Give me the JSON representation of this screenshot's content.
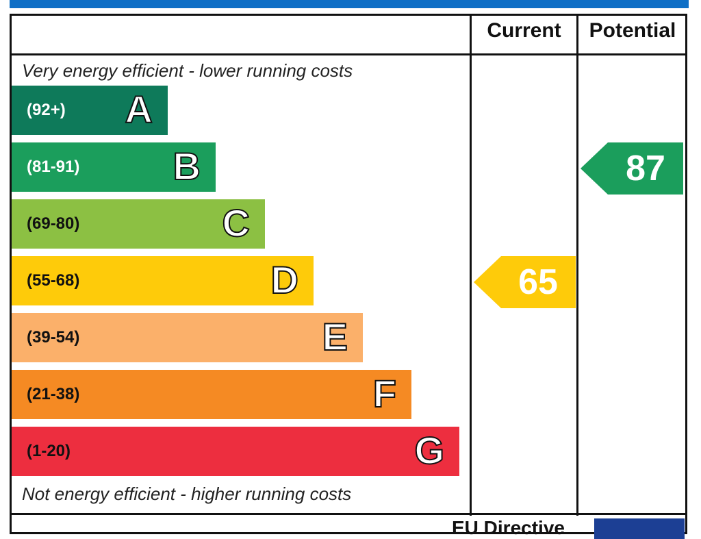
{
  "header": {
    "col_current": "Current",
    "col_potential": "Potential"
  },
  "captions": {
    "top": "Very energy efficient - lower running costs",
    "bottom": "Not energy efficient - higher running costs"
  },
  "chart_data": {
    "type": "bar",
    "categories": [
      "A",
      "B",
      "C",
      "D",
      "E",
      "F",
      "G"
    ],
    "ranges": [
      "(92+)",
      "(81-91)",
      "(69-80)",
      "(55-68)",
      "(39-54)",
      "(21-38)",
      "(1-20)"
    ],
    "colors": [
      "#0e7a5a",
      "#1b9e5c",
      "#8cc043",
      "#fecb0a",
      "#fbb06a",
      "#f58a23",
      "#ed2e3f"
    ],
    "range_text_colors": [
      "#ffffff",
      "#ffffff",
      "#111111",
      "#111111",
      "#111111",
      "#111111",
      "#111111"
    ],
    "current": {
      "value": 65,
      "band": "D",
      "color": "#fecb0a"
    },
    "potential": {
      "value": 87,
      "band": "B",
      "color": "#1b9e5c"
    }
  },
  "footer": {
    "text": "EU Directive"
  }
}
